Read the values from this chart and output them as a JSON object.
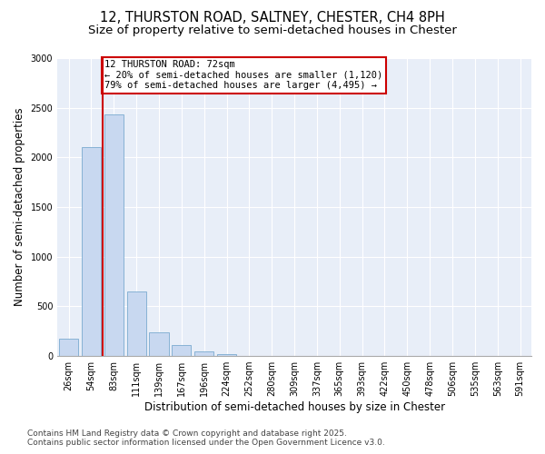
{
  "title_line1": "12, THURSTON ROAD, SALTNEY, CHESTER, CH4 8PH",
  "title_line2": "Size of property relative to semi-detached houses in Chester",
  "xlabel": "Distribution of semi-detached houses by size in Chester",
  "ylabel": "Number of semi-detached properties",
  "categories": [
    "26sqm",
    "54sqm",
    "83sqm",
    "111sqm",
    "139sqm",
    "167sqm",
    "196sqm",
    "224sqm",
    "252sqm",
    "280sqm",
    "309sqm",
    "337sqm",
    "365sqm",
    "393sqm",
    "422sqm",
    "450sqm",
    "478sqm",
    "506sqm",
    "535sqm",
    "563sqm",
    "591sqm"
  ],
  "bar_heights": [
    175,
    2100,
    2430,
    650,
    240,
    110,
    50,
    20,
    0,
    0,
    0,
    0,
    0,
    0,
    0,
    0,
    0,
    0,
    0,
    0,
    0
  ],
  "bar_color": "#c8d8f0",
  "bar_edge_color": "#7aaad0",
  "vline_x": 1.5,
  "vline_color": "#cc0000",
  "annotation_line1": "12 THURSTON ROAD: 72sqm",
  "annotation_line2": "← 20% of semi-detached houses are smaller (1,120)",
  "annotation_line3": "79% of semi-detached houses are larger (4,495) →",
  "annotation_box_color": "#cc0000",
  "ylim": [
    0,
    3000
  ],
  "yticks": [
    0,
    500,
    1000,
    1500,
    2000,
    2500,
    3000
  ],
  "footer_line1": "Contains HM Land Registry data © Crown copyright and database right 2025.",
  "footer_line2": "Contains public sector information licensed under the Open Government Licence v3.0.",
  "bg_color": "#ffffff",
  "plot_bg_color": "#e8eef8",
  "grid_color": "#ffffff",
  "title_fontsize": 10.5,
  "subtitle_fontsize": 9.5,
  "axis_label_fontsize": 8.5,
  "tick_fontsize": 7,
  "footer_fontsize": 6.5,
  "annotation_fontsize": 7.5
}
